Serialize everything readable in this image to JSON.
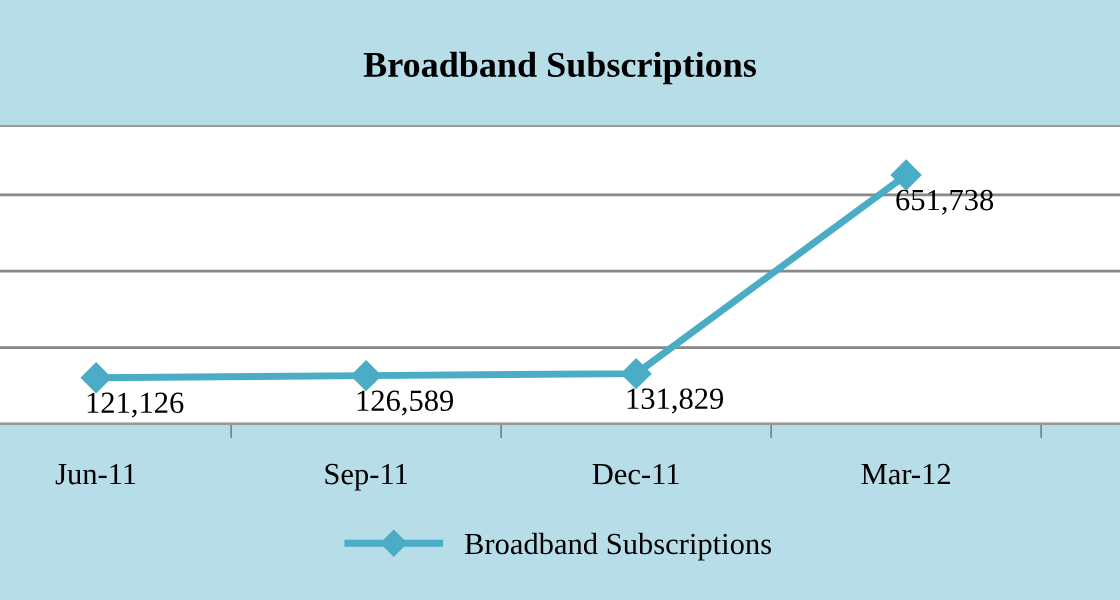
{
  "chart_data": {
    "type": "line",
    "title": "Broadband Subscriptions",
    "categories": [
      "Jun-11",
      "Sep-11",
      "Dec-11",
      "Mar-12"
    ],
    "series": [
      {
        "name": "Broadband Subscriptions",
        "color": "#4bacc6",
        "values": [
          121126,
          126589,
          131829,
          651738
        ],
        "value_labels": [
          "121,126",
          "126,589",
          "131,829",
          "651,738"
        ]
      }
    ],
    "grid": "y",
    "legend": "bottom",
    "marker": "diamond",
    "line_style": "solid"
  }
}
